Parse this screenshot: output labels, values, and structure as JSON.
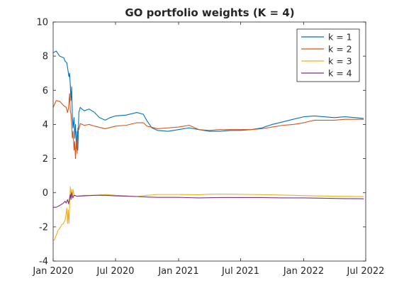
{
  "chart_data": {
    "type": "line",
    "title": "GO portfolio weights (K = 4)",
    "xlabel": "",
    "ylabel": "",
    "x_axis_type": "date",
    "xlim": [
      "2020-01-01",
      "2022-07-01"
    ],
    "ylim": [
      -4,
      10
    ],
    "x_ticks": [
      {
        "date": "2020-01-01",
        "label": "Jan 2020"
      },
      {
        "date": "2020-07-01",
        "label": "Jul 2020"
      },
      {
        "date": "2021-01-01",
        "label": "Jan 2021"
      },
      {
        "date": "2021-07-01",
        "label": "Jul 2021"
      },
      {
        "date": "2022-01-01",
        "label": "Jan 2022"
      },
      {
        "date": "2022-07-01",
        "label": "Jul 2022"
      }
    ],
    "y_ticks": [
      -4,
      -2,
      0,
      2,
      4,
      6,
      8,
      10
    ],
    "grid": false,
    "legend_position": "top-right",
    "series": [
      {
        "name": "k = 1",
        "color": "#0072BD",
        "points": [
          [
            "2020-01-01",
            8.2
          ],
          [
            "2020-01-10",
            8.3
          ],
          [
            "2020-01-20",
            8.0
          ],
          [
            "2020-02-01",
            7.9
          ],
          [
            "2020-02-05",
            7.7
          ],
          [
            "2020-02-10",
            7.6
          ],
          [
            "2020-02-13",
            7.2
          ],
          [
            "2020-02-16",
            6.8
          ],
          [
            "2020-02-18",
            7.0
          ],
          [
            "2020-02-20",
            6.3
          ],
          [
            "2020-02-22",
            5.4
          ],
          [
            "2020-02-24",
            6.2
          ],
          [
            "2020-02-26",
            4.5
          ],
          [
            "2020-02-28",
            3.8
          ],
          [
            "2020-03-02",
            4.4
          ],
          [
            "2020-03-04",
            3.2
          ],
          [
            "2020-03-06",
            4.0
          ],
          [
            "2020-03-09",
            2.6
          ],
          [
            "2020-03-11",
            3.6
          ],
          [
            "2020-03-13",
            2.5
          ],
          [
            "2020-03-16",
            4.7
          ],
          [
            "2020-03-20",
            5.0
          ],
          [
            "2020-03-25",
            4.9
          ],
          [
            "2020-04-01",
            4.8
          ],
          [
            "2020-04-15",
            4.9
          ],
          [
            "2020-05-01",
            4.7
          ],
          [
            "2020-05-15",
            4.4
          ],
          [
            "2020-06-01",
            4.25
          ],
          [
            "2020-06-15",
            4.4
          ],
          [
            "2020-07-01",
            4.5
          ],
          [
            "2020-08-01",
            4.55
          ],
          [
            "2020-09-01",
            4.7
          ],
          [
            "2020-09-20",
            4.6
          ],
          [
            "2020-10-01",
            4.2
          ],
          [
            "2020-10-15",
            3.8
          ],
          [
            "2020-11-01",
            3.65
          ],
          [
            "2020-12-01",
            3.6
          ],
          [
            "2021-01-01",
            3.7
          ],
          [
            "2021-02-01",
            3.8
          ],
          [
            "2021-03-01",
            3.7
          ],
          [
            "2021-04-01",
            3.6
          ],
          [
            "2021-05-01",
            3.6
          ],
          [
            "2021-06-01",
            3.65
          ],
          [
            "2021-07-01",
            3.65
          ],
          [
            "2021-08-01",
            3.7
          ],
          [
            "2021-09-01",
            3.8
          ],
          [
            "2021-10-01",
            4.0
          ],
          [
            "2021-11-01",
            4.15
          ],
          [
            "2021-12-01",
            4.3
          ],
          [
            "2022-01-01",
            4.45
          ],
          [
            "2022-02-01",
            4.5
          ],
          [
            "2022-03-01",
            4.45
          ],
          [
            "2022-04-01",
            4.4
          ],
          [
            "2022-05-01",
            4.45
          ],
          [
            "2022-06-01",
            4.4
          ],
          [
            "2022-06-25",
            4.35
          ]
        ]
      },
      {
        "name": "k = 2",
        "color": "#D95319",
        "points": [
          [
            "2020-01-01",
            5.0
          ],
          [
            "2020-01-10",
            5.4
          ],
          [
            "2020-01-20",
            5.35
          ],
          [
            "2020-02-01",
            5.1
          ],
          [
            "2020-02-08",
            5.0
          ],
          [
            "2020-02-12",
            4.7
          ],
          [
            "2020-02-15",
            5.0
          ],
          [
            "2020-02-18",
            5.8
          ],
          [
            "2020-02-20",
            4.8
          ],
          [
            "2020-02-22",
            4.6
          ],
          [
            "2020-02-24",
            4.0
          ],
          [
            "2020-02-26",
            3.2
          ],
          [
            "2020-02-28",
            3.6
          ],
          [
            "2020-03-02",
            2.5
          ],
          [
            "2020-03-04",
            3.0
          ],
          [
            "2020-03-06",
            2.0
          ],
          [
            "2020-03-09",
            3.2
          ],
          [
            "2020-03-11",
            2.3
          ],
          [
            "2020-03-13",
            3.8
          ],
          [
            "2020-03-16",
            3.7
          ],
          [
            "2020-03-20",
            4.05
          ],
          [
            "2020-04-01",
            3.95
          ],
          [
            "2020-04-15",
            4.0
          ],
          [
            "2020-05-01",
            3.9
          ],
          [
            "2020-06-01",
            3.75
          ],
          [
            "2020-07-01",
            3.9
          ],
          [
            "2020-08-01",
            3.95
          ],
          [
            "2020-09-01",
            4.1
          ],
          [
            "2020-09-20",
            4.1
          ],
          [
            "2020-10-01",
            3.9
          ],
          [
            "2020-11-01",
            3.75
          ],
          [
            "2020-12-01",
            3.8
          ],
          [
            "2021-01-01",
            3.85
          ],
          [
            "2021-02-01",
            3.95
          ],
          [
            "2021-03-01",
            3.7
          ],
          [
            "2021-04-01",
            3.65
          ],
          [
            "2021-05-01",
            3.7
          ],
          [
            "2021-06-01",
            3.7
          ],
          [
            "2021-07-01",
            3.7
          ],
          [
            "2021-08-01",
            3.7
          ],
          [
            "2021-09-01",
            3.75
          ],
          [
            "2021-10-01",
            3.85
          ],
          [
            "2021-11-01",
            3.95
          ],
          [
            "2021-12-01",
            4.0
          ],
          [
            "2022-01-01",
            4.1
          ],
          [
            "2022-02-01",
            4.25
          ],
          [
            "2022-03-01",
            4.25
          ],
          [
            "2022-04-01",
            4.25
          ],
          [
            "2022-05-01",
            4.3
          ],
          [
            "2022-06-01",
            4.3
          ],
          [
            "2022-06-25",
            4.3
          ]
        ]
      },
      {
        "name": "k = 3",
        "color": "#EDB120",
        "points": [
          [
            "2020-01-01",
            -2.8
          ],
          [
            "2020-01-05",
            -2.75
          ],
          [
            "2020-01-10",
            -2.5
          ],
          [
            "2020-01-15",
            -2.2
          ],
          [
            "2020-01-20",
            -2.1
          ],
          [
            "2020-01-25",
            -1.9
          ],
          [
            "2020-01-31",
            -1.8
          ],
          [
            "2020-02-05",
            -1.6
          ],
          [
            "2020-02-08",
            -1.2
          ],
          [
            "2020-02-10",
            -0.9
          ],
          [
            "2020-02-12",
            -1.8
          ],
          [
            "2020-02-14",
            -1.0
          ],
          [
            "2020-02-16",
            -1.8
          ],
          [
            "2020-02-18",
            -0.8
          ],
          [
            "2020-02-20",
            0.35
          ],
          [
            "2020-02-22",
            -0.2
          ],
          [
            "2020-02-24",
            0.2
          ],
          [
            "2020-02-26",
            -0.3
          ],
          [
            "2020-02-28",
            0.2
          ],
          [
            "2020-03-02",
            -0.15
          ],
          [
            "2020-03-10",
            -0.2
          ],
          [
            "2020-04-01",
            -0.15
          ],
          [
            "2020-05-01",
            -0.15
          ],
          [
            "2020-06-01",
            -0.1
          ],
          [
            "2020-07-01",
            -0.15
          ],
          [
            "2020-08-01",
            -0.18
          ],
          [
            "2020-09-01",
            -0.22
          ],
          [
            "2020-10-01",
            -0.15
          ],
          [
            "2020-11-01",
            -0.1
          ],
          [
            "2021-01-01",
            -0.1
          ],
          [
            "2021-03-01",
            -0.12
          ],
          [
            "2021-04-01",
            -0.08
          ],
          [
            "2021-06-01",
            -0.08
          ],
          [
            "2021-08-01",
            -0.1
          ],
          [
            "2021-10-01",
            -0.12
          ],
          [
            "2021-12-01",
            -0.15
          ],
          [
            "2022-02-01",
            -0.18
          ],
          [
            "2022-04-01",
            -0.2
          ],
          [
            "2022-06-25",
            -0.22
          ]
        ]
      },
      {
        "name": "k = 4",
        "color": "#7E2F8E",
        "points": [
          [
            "2020-01-01",
            -0.85
          ],
          [
            "2020-01-10",
            -0.85
          ],
          [
            "2020-01-20",
            -0.75
          ],
          [
            "2020-01-31",
            -0.6
          ],
          [
            "2020-02-05",
            -0.5
          ],
          [
            "2020-02-08",
            -0.6
          ],
          [
            "2020-02-12",
            -0.4
          ],
          [
            "2020-02-15",
            -0.65
          ],
          [
            "2020-02-18",
            -0.3
          ],
          [
            "2020-02-20",
            -0.1
          ],
          [
            "2020-02-22",
            -0.4
          ],
          [
            "2020-02-24",
            0.0
          ],
          [
            "2020-02-27",
            -0.3
          ],
          [
            "2020-03-02",
            -0.15
          ],
          [
            "2020-03-10",
            -0.2
          ],
          [
            "2020-04-01",
            -0.18
          ],
          [
            "2020-05-01",
            -0.15
          ],
          [
            "2020-06-01",
            -0.15
          ],
          [
            "2020-07-01",
            -0.18
          ],
          [
            "2020-08-01",
            -0.2
          ],
          [
            "2020-09-01",
            -0.22
          ],
          [
            "2020-10-01",
            -0.25
          ],
          [
            "2020-11-01",
            -0.27
          ],
          [
            "2021-01-01",
            -0.27
          ],
          [
            "2021-03-01",
            -0.3
          ],
          [
            "2021-05-01",
            -0.28
          ],
          [
            "2021-07-01",
            -0.28
          ],
          [
            "2021-09-01",
            -0.28
          ],
          [
            "2021-11-01",
            -0.3
          ],
          [
            "2022-01-01",
            -0.3
          ],
          [
            "2022-03-01",
            -0.32
          ],
          [
            "2022-05-01",
            -0.34
          ],
          [
            "2022-06-25",
            -0.35
          ]
        ]
      }
    ]
  }
}
